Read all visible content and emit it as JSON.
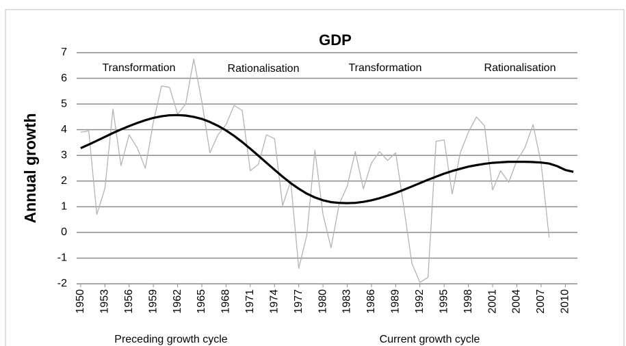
{
  "chart_data": {
    "type": "line",
    "title": "GDP",
    "y_label": "Annual growth",
    "annotations": [
      "Transformation",
      "Rationalisation",
      "Transformation",
      "Rationalisation"
    ],
    "x_annotations": [
      "Preceding growth cycle",
      "Current growth cycle"
    ],
    "x": [
      1950,
      1951,
      1952,
      1953,
      1954,
      1955,
      1956,
      1957,
      1958,
      1959,
      1960,
      1961,
      1962,
      1963,
      1964,
      1965,
      1966,
      1967,
      1968,
      1969,
      1970,
      1971,
      1972,
      1973,
      1974,
      1975,
      1976,
      1977,
      1978,
      1979,
      1980,
      1981,
      1982,
      1983,
      1984,
      1985,
      1986,
      1987,
      1988,
      1989,
      1990,
      1991,
      1992,
      1993,
      1994,
      1995,
      1996,
      1997,
      1998,
      1999,
      2000,
      2001,
      2002,
      2003,
      2004,
      2005,
      2006,
      2007,
      2008,
      2009,
      2010,
      2011
    ],
    "series": [
      {
        "color": "#b3b3b3",
        "width": 1.3,
        "values": [
          3.9,
          3.95,
          0.7,
          1.7,
          4.8,
          2.6,
          3.8,
          3.3,
          2.5,
          4.3,
          5.7,
          5.65,
          4.6,
          5.0,
          6.75,
          5.1,
          3.1,
          3.8,
          4.2,
          4.95,
          4.75,
          2.4,
          2.65,
          3.8,
          3.65,
          1.05,
          2.0,
          -1.4,
          -0.1,
          3.2,
          0.7,
          -0.6,
          1.1,
          1.8,
          3.15,
          1.7,
          2.7,
          3.15,
          2.8,
          3.1,
          1.0,
          -1.2,
          -1.95,
          -1.75,
          3.55,
          3.6,
          1.5,
          3.1,
          3.9,
          4.5,
          4.15,
          1.65,
          2.4,
          1.95,
          2.8,
          3.3,
          4.2,
          2.7,
          -0.2,
          null,
          null,
          null
        ]
      },
      {
        "color": "#000000",
        "width": 3.2,
        "values": [
          3.28,
          3.42,
          3.57,
          3.72,
          3.87,
          4.01,
          4.14,
          4.26,
          4.37,
          4.46,
          4.52,
          4.56,
          4.57,
          4.55,
          4.5,
          4.42,
          4.3,
          4.15,
          3.97,
          3.76,
          3.52,
          3.26,
          2.99,
          2.71,
          2.44,
          2.17,
          1.92,
          1.7,
          1.51,
          1.36,
          1.25,
          1.18,
          1.15,
          1.14,
          1.15,
          1.19,
          1.25,
          1.33,
          1.43,
          1.54,
          1.66,
          1.79,
          1.92,
          2.05,
          2.17,
          2.29,
          2.39,
          2.48,
          2.56,
          2.62,
          2.67,
          2.71,
          2.73,
          2.75,
          2.75,
          2.75,
          2.74,
          2.72,
          2.68,
          2.58,
          2.43,
          2.36
        ]
      }
    ],
    "xlim": [
      1949.5,
      2011.5
    ],
    "xticks": [
      1950,
      1953,
      1956,
      1959,
      1962,
      1965,
      1968,
      1971,
      1974,
      1977,
      1980,
      1983,
      1986,
      1989,
      1992,
      1995,
      1998,
      2001,
      2004,
      2007,
      2010
    ],
    "ylim": [
      -2,
      7
    ],
    "yticks": [
      -2,
      -1,
      0,
      1,
      2,
      3,
      4,
      5,
      6,
      7
    ],
    "grid": true,
    "grid_color": "#8c8c8c"
  }
}
